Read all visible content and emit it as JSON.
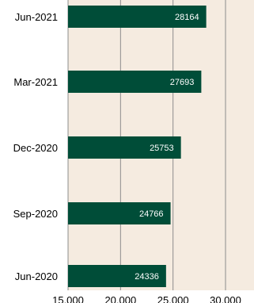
{
  "chart_data": {
    "type": "bar",
    "orientation": "horizontal",
    "categories": [
      "Jun-2020",
      "Sep-2020",
      "Dec-2020",
      "Mar-2021",
      "Jun-2021"
    ],
    "values": [
      24336,
      24766,
      25753,
      27693,
      28164
    ],
    "data_labels": [
      "24336",
      "24766",
      "25753",
      "27693",
      "28164"
    ],
    "x_ticks": [
      "15,000",
      "20,000",
      "25,000",
      "30,000"
    ],
    "xlim": [
      15000,
      30000
    ],
    "grid": true,
    "title": "",
    "xlabel": "",
    "ylabel": "",
    "colors": {
      "bar": "#004d38",
      "plot_background": "#f5ebe0",
      "gridline": "#8c8c8c",
      "data_label": "#ffffff"
    }
  }
}
